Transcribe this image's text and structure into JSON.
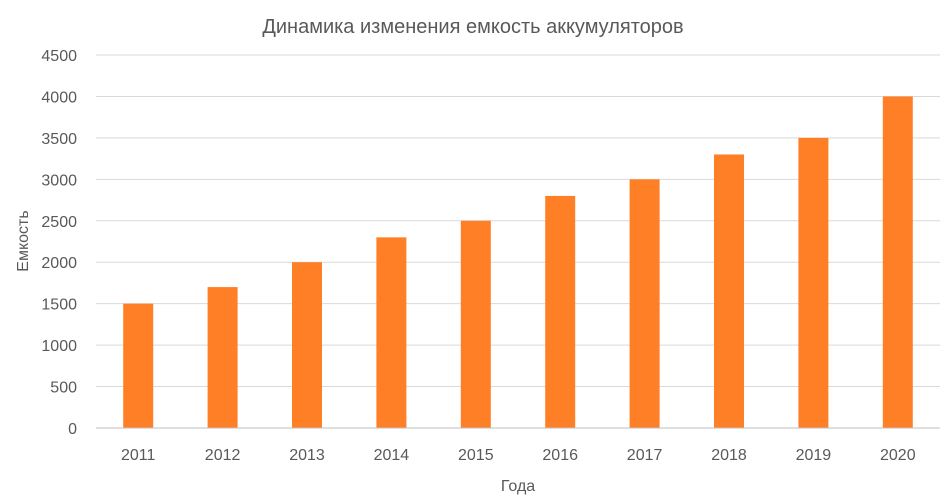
{
  "chart_data": {
    "type": "bar",
    "title": "Динамика изменения емкость аккумуляторов",
    "xlabel": "Года",
    "ylabel": "Емкость",
    "categories": [
      "2011",
      "2012",
      "2013",
      "2014",
      "2015",
      "2016",
      "2017",
      "2018",
      "2019",
      "2020"
    ],
    "values": [
      1500,
      1700,
      2000,
      2300,
      2500,
      2800,
      3000,
      3300,
      3500,
      4000
    ],
    "ylim": [
      0,
      4500
    ],
    "yticks": [
      "0",
      "500",
      "1000",
      "1500",
      "2000",
      "2500",
      "3000",
      "3500",
      "4000",
      "4500"
    ],
    "grid": true,
    "legend": "none",
    "colors": {
      "bar": "#FF7F27",
      "text": "#595959",
      "grid": "#D9D9D9"
    }
  }
}
